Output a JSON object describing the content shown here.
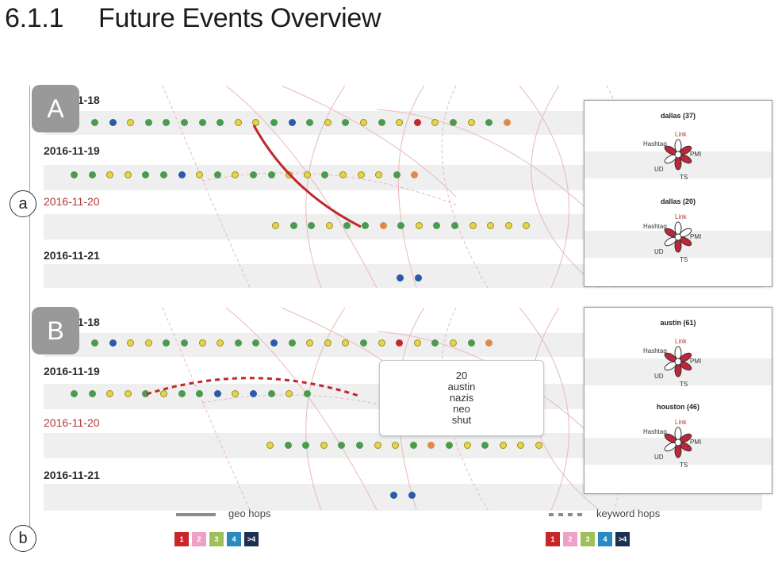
{
  "section": {
    "number": "6.1.1",
    "title": "Future Events Overview"
  },
  "markers": {
    "a": "a",
    "b": "b"
  },
  "panels": [
    {
      "id": "A",
      "badge": "A",
      "dates": [
        "2016-11-18",
        "2016-11-19",
        "2016-11-20",
        "2016-11-21"
      ],
      "glyph_cards": [
        {
          "title": "dallas (37)"
        },
        {
          "title": "dallas (20)"
        }
      ],
      "dot_rows": [
        "gbygggggyygbgygygyrygygo",
        "ggyyggbygyggyygyyygo",
        "yggyggogyggyyyy",
        "bb"
      ]
    },
    {
      "id": "B",
      "badge": "B",
      "dates": [
        "2016-11-18",
        "2016-11-19",
        "2016-11-20",
        "2016-11-21"
      ],
      "glyph_cards": [
        {
          "title": "austin (61)"
        },
        {
          "title": "houston (46)"
        }
      ],
      "dot_rows": [
        "gbyyggyyggbgyyygyrygygo",
        "ggyygyggbybgyg",
        "yggyggyygogygyyy",
        "bb"
      ],
      "tooltip": [
        "20",
        "austin",
        "nazis",
        "neo",
        "shut"
      ]
    }
  ],
  "glyph_labels": {
    "link": "Link",
    "hashtag": "Hashtag",
    "pmi": "PMI",
    "ud": "UD",
    "ts": "TS"
  },
  "legend": {
    "geo": {
      "label": "geo hops",
      "buckets": [
        "1",
        "2",
        "3",
        "4",
        ">4"
      ]
    },
    "keyword": {
      "label": "keyword hops",
      "buckets": [
        "1",
        "2",
        "3",
        "4",
        ">4"
      ]
    },
    "colors": [
      "#c8262a",
      "#f0a0c8",
      "#9fbf5a",
      "#2a8ac0",
      "#1b3050"
    ]
  }
}
